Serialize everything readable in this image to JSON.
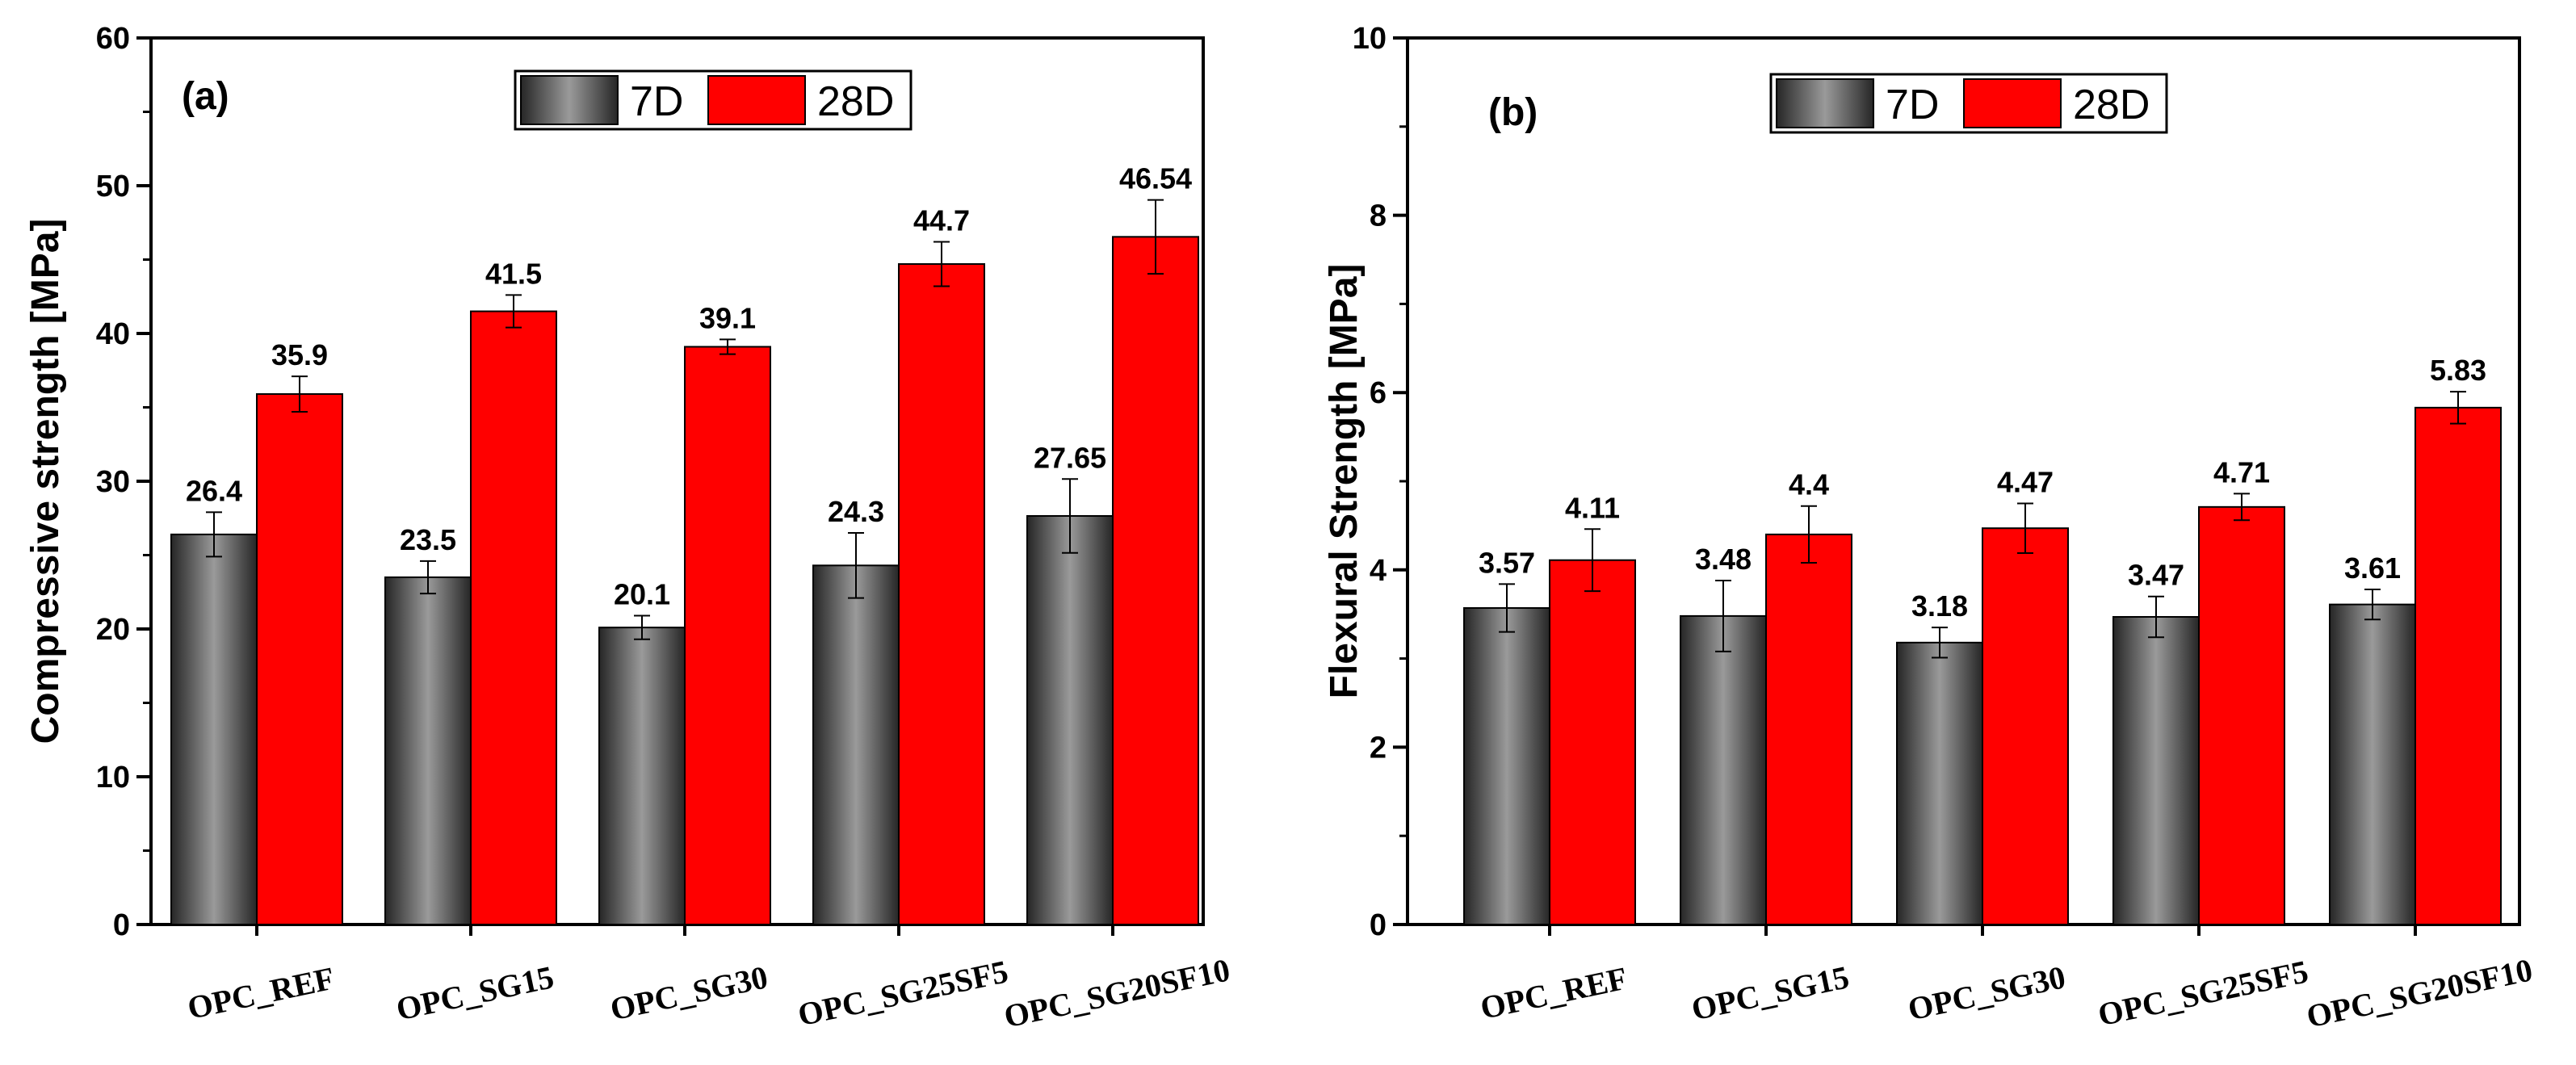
{
  "colors": {
    "series_7d_dark": "#262626",
    "series_7d_light": "#9a9a9a",
    "series_28d": "#ff0000",
    "axis": "#000000"
  },
  "chart_data": [
    {
      "panel": "(a)",
      "type": "bar",
      "title": "",
      "xlabel": "",
      "ylabel": "Compressive strength [MPa]",
      "ylim": [
        0,
        60
      ],
      "yticks": [
        0,
        10,
        20,
        30,
        40,
        50,
        60
      ],
      "categories": [
        "OPC_REF",
        "OPC_SG15",
        "OPC_SG30",
        "OPC_SG25SF5",
        "OPC_SG20SF10"
      ],
      "series": [
        {
          "name": "7D",
          "values": [
            26.4,
            23.5,
            20.1,
            24.3,
            27.65
          ],
          "labels": [
            "26.4",
            "23.5",
            "20.1",
            "24.3",
            "27.65"
          ],
          "errors": [
            1.5,
            1.1,
            0.8,
            2.2,
            2.5
          ]
        },
        {
          "name": "28D",
          "values": [
            35.9,
            41.5,
            39.1,
            44.7,
            46.54
          ],
          "labels": [
            "35.9",
            "41.5",
            "39.1",
            "44.7",
            "46.54"
          ],
          "errors": [
            1.2,
            1.1,
            0.5,
            1.5,
            2.5
          ]
        }
      ],
      "legend": "top-center",
      "grid": false
    },
    {
      "panel": "(b)",
      "type": "bar",
      "title": "",
      "xlabel": "",
      "ylabel": "Flexural Strength [MPa]",
      "ylim": [
        0,
        10
      ],
      "yticks": [
        0,
        2,
        4,
        6,
        8,
        10
      ],
      "categories": [
        "OPC_REF",
        "OPC_SG15",
        "OPC_SG30",
        "OPC_SG25SF5",
        "OPC_SG20SF10"
      ],
      "series": [
        {
          "name": "7D",
          "values": [
            3.57,
            3.48,
            3.18,
            3.47,
            3.61
          ],
          "labels": [
            "3.57",
            "3.48",
            "3.18",
            "3.47",
            "3.61"
          ],
          "errors": [
            0.27,
            0.4,
            0.17,
            0.23,
            0.17
          ]
        },
        {
          "name": "28D",
          "values": [
            4.11,
            4.4,
            4.47,
            4.71,
            5.83
          ],
          "labels": [
            "4.11",
            "4.4",
            "4.47",
            "4.71",
            "5.83"
          ],
          "errors": [
            0.35,
            0.32,
            0.28,
            0.15,
            0.18
          ]
        }
      ],
      "legend": "top-center",
      "grid": false
    }
  ]
}
